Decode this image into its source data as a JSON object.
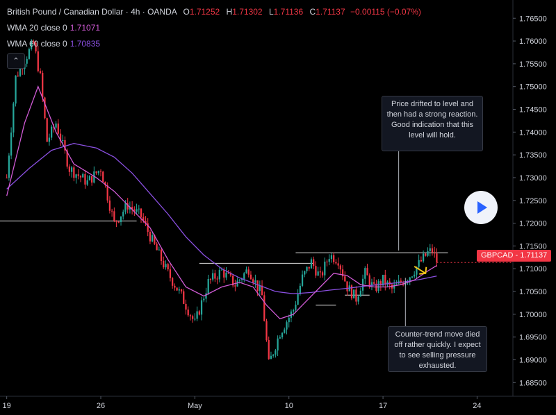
{
  "header": {
    "title": "British Pound / Canadian Dollar · 4h · OANDA",
    "open_label": "O",
    "open": "1.71252",
    "high_label": "H",
    "high": "1.71302",
    "low_label": "L",
    "low": "1.71136",
    "close_label": "C",
    "close": "1.71137",
    "change": "−0.00115 (−0.07%)"
  },
  "indicators": [
    {
      "name": "WMA 20 close 0",
      "value": "1.71071",
      "color": "#d15bd6"
    },
    {
      "name": "WMA 60 close 0",
      "value": "1.70835",
      "color": "#8a4fe0"
    }
  ],
  "collapse_icon": "chevron-up-icon",
  "notes": [
    {
      "text": "Price drifted to level and then had a strong reaction. Good indication that this level will hold."
    },
    {
      "text": "Counter-trend move died off rather quickly. I expect to see selling pressure exhausted."
    }
  ],
  "price_tag": {
    "symbol": "GBPCAD",
    "value": "1.71137",
    "color": "#f23645"
  },
  "play_icon": "play-icon",
  "colors": {
    "up": "#26a69a",
    "down": "#f23645",
    "wma20": "#d15bd6",
    "wma60": "#8a4fe0",
    "arrow": "#f5c518"
  },
  "chart_data": {
    "type": "candlestick",
    "y_axis": {
      "labels": [
        "1.76500",
        "1.76000",
        "1.75500",
        "1.75000",
        "1.74500",
        "1.74000",
        "1.73500",
        "1.73000",
        "1.72500",
        "1.72000",
        "1.71500",
        "1.71000",
        "1.70500",
        "1.70000",
        "1.69500",
        "1.69000",
        "1.68500"
      ],
      "range": [
        1.682,
        1.769
      ]
    },
    "x_axis": {
      "labels": [
        "19",
        "26",
        "May",
        "10",
        "17",
        "24"
      ],
      "label_positions": [
        0,
        42,
        84,
        126,
        168,
        210
      ],
      "range": [
        -3,
        226
      ]
    },
    "anchors": [
      [
        0,
        1.73
      ],
      [
        4,
        1.752
      ],
      [
        8,
        1.756
      ],
      [
        12,
        1.7595
      ],
      [
        15,
        1.752
      ],
      [
        18,
        1.738
      ],
      [
        22,
        1.742
      ],
      [
        28,
        1.732
      ],
      [
        36,
        1.729
      ],
      [
        42,
        1.732
      ],
      [
        48,
        1.72
      ],
      [
        54,
        1.724
      ],
      [
        60,
        1.7215
      ],
      [
        66,
        1.715
      ],
      [
        72,
        1.709
      ],
      [
        78,
        1.704
      ],
      [
        84,
        1.698
      ],
      [
        90,
        1.707
      ],
      [
        96,
        1.7095
      ],
      [
        102,
        1.7065
      ],
      [
        108,
        1.71
      ],
      [
        114,
        1.704
      ],
      [
        117,
        1.689
      ],
      [
        122,
        1.696
      ],
      [
        128,
        1.701
      ],
      [
        132,
        1.708
      ],
      [
        136,
        1.7115
      ],
      [
        140,
        1.708
      ],
      [
        144,
        1.713
      ],
      [
        148,
        1.712
      ],
      [
        152,
        1.706
      ],
      [
        156,
        1.7035
      ],
      [
        160,
        1.709
      ],
      [
        164,
        1.7055
      ],
      [
        168,
        1.7075
      ],
      [
        172,
        1.7055
      ],
      [
        176,
        1.707
      ],
      [
        180,
        1.7085
      ],
      [
        184,
        1.711
      ],
      [
        188,
        1.7135
      ],
      [
        190,
        1.714
      ],
      [
        192,
        1.7114
      ]
    ],
    "wma20": [
      [
        0,
        1.726
      ],
      [
        8,
        1.742
      ],
      [
        14,
        1.75
      ],
      [
        22,
        1.74
      ],
      [
        30,
        1.733
      ],
      [
        40,
        1.73
      ],
      [
        48,
        1.727
      ],
      [
        56,
        1.723
      ],
      [
        64,
        1.719
      ],
      [
        72,
        1.712
      ],
      [
        80,
        1.706
      ],
      [
        88,
        1.704
      ],
      [
        96,
        1.706
      ],
      [
        104,
        1.707
      ],
      [
        110,
        1.706
      ],
      [
        116,
        1.702
      ],
      [
        122,
        1.699
      ],
      [
        128,
        1.7
      ],
      [
        134,
        1.703
      ],
      [
        140,
        1.706
      ],
      [
        146,
        1.709
      ],
      [
        152,
        1.7085
      ],
      [
        158,
        1.7065
      ],
      [
        164,
        1.706
      ],
      [
        170,
        1.706
      ],
      [
        176,
        1.7065
      ],
      [
        182,
        1.7075
      ],
      [
        188,
        1.7095
      ],
      [
        192,
        1.7107
      ]
    ],
    "wma60": [
      [
        0,
        1.7275
      ],
      [
        10,
        1.732
      ],
      [
        20,
        1.736
      ],
      [
        30,
        1.7375
      ],
      [
        40,
        1.7365
      ],
      [
        48,
        1.7345
      ],
      [
        56,
        1.731
      ],
      [
        64,
        1.7265
      ],
      [
        72,
        1.722
      ],
      [
        80,
        1.717
      ],
      [
        88,
        1.713
      ],
      [
        96,
        1.71
      ],
      [
        104,
        1.708
      ],
      [
        112,
        1.7065
      ],
      [
        120,
        1.705
      ],
      [
        128,
        1.7045
      ],
      [
        136,
        1.7048
      ],
      [
        144,
        1.7053
      ],
      [
        152,
        1.7057
      ],
      [
        160,
        1.7062
      ],
      [
        168,
        1.7066
      ],
      [
        176,
        1.707
      ],
      [
        184,
        1.7076
      ],
      [
        192,
        1.7084
      ]
    ],
    "levels": [
      {
        "y": 1.7205,
        "x1": -3,
        "x2": 58
      },
      {
        "y": 1.7112,
        "x1": 86,
        "x2": 137
      },
      {
        "y": 1.7135,
        "x1": 129,
        "x2": 197
      },
      {
        "y": 1.702,
        "x1": 138,
        "x2": 147
      },
      {
        "y": 1.7042,
        "x1": 151,
        "x2": 162
      }
    ],
    "callout_lines": [
      {
        "x": 175,
        "y1": 1.736,
        "y2": 1.714
      },
      {
        "x": 178,
        "y1": 1.708,
        "y2": 1.695
      }
    ],
    "arrow": {
      "x": 182,
      "y": 1.7105,
      "dx": 5,
      "dy": -0.0015
    }
  }
}
